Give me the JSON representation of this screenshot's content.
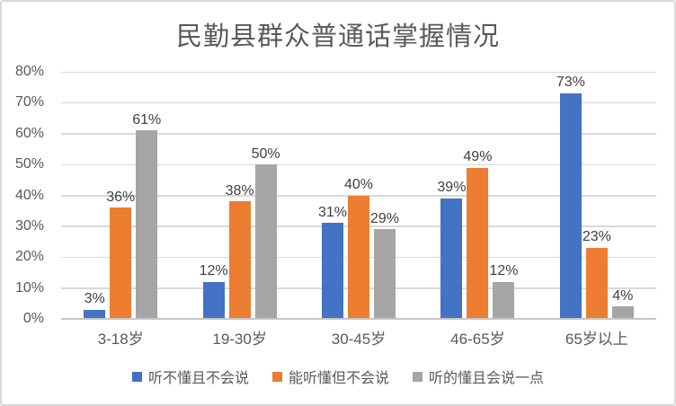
{
  "chart_data": {
    "type": "bar",
    "title": "民勤县群众普通话掌握情况",
    "categories": [
      "3-18岁",
      "19-30岁",
      "30-45岁",
      "46-65岁",
      "65岁以上"
    ],
    "series": [
      {
        "name": "听不懂且不会说",
        "color": "#4472C4",
        "values": [
          3,
          12,
          31,
          39,
          73
        ]
      },
      {
        "name": "能听懂但不会说",
        "color": "#ED7D31",
        "values": [
          36,
          38,
          40,
          49,
          23
        ]
      },
      {
        "name": "听的懂且会说一点",
        "color": "#A5A5A5",
        "values": [
          61,
          50,
          29,
          12,
          4
        ]
      }
    ],
    "data_labels": [
      [
        "3%",
        "12%",
        "31%",
        "39%",
        "73%"
      ],
      [
        "36%",
        "38%",
        "40%",
        "49%",
        "23%"
      ],
      [
        "61%",
        "50%",
        "29%",
        "12%",
        "4%"
      ]
    ],
    "value_suffix": "%",
    "ylim": [
      0,
      80
    ],
    "ytick_step": 10,
    "ytick_labels": [
      "0%",
      "10%",
      "20%",
      "30%",
      "40%",
      "50%",
      "60%",
      "70%",
      "80%"
    ],
    "grid": true,
    "legend_position": "bottom",
    "colors": {
      "grid": "#D9D9D9",
      "axis_line": "#C6C6C6",
      "title_text": "#595959",
      "axis_text": "#595959",
      "data_label_text": "#404040",
      "legend_text": "#595959",
      "frame_border": "#D9D9D9",
      "background": "#FFFFFF"
    }
  }
}
